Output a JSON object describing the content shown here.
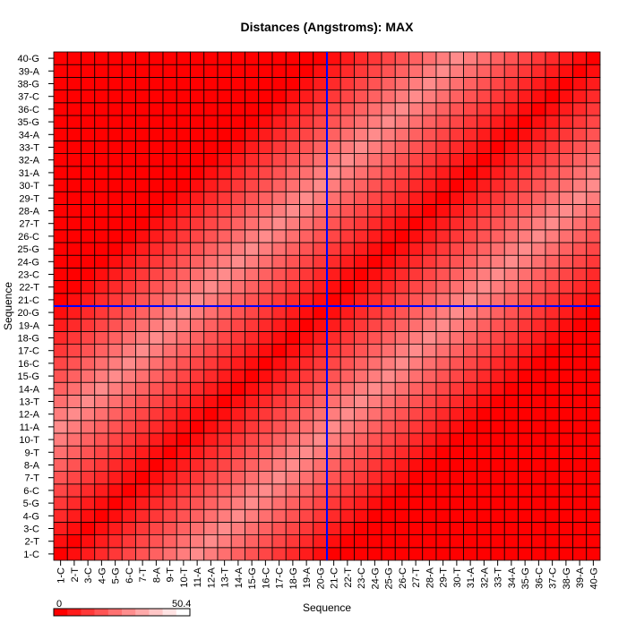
{
  "chart_data": {
    "type": "heatmap",
    "title": "Distances (Angstroms):  MAX",
    "xlabel": "Sequence",
    "ylabel": "Sequence",
    "categories": [
      "1-C",
      "2-T",
      "3-C",
      "4-G",
      "5-G",
      "6-C",
      "7-T",
      "8-A",
      "9-T",
      "10-T",
      "11-A",
      "12-A",
      "13-T",
      "14-A",
      "15-G",
      "16-C",
      "17-C",
      "18-G",
      "19-A",
      "20-G",
      "21-C",
      "22-T",
      "23-C",
      "24-G",
      "25-G",
      "26-C",
      "27-T",
      "28-A",
      "29-T",
      "30-T",
      "31-A",
      "32-A",
      "33-T",
      "34-A",
      "35-G",
      "36-C",
      "37-C",
      "38-G",
      "39-A",
      "40-G"
    ],
    "value_model": "distance(i,j) = min(2.75*|i-j|, 55 - 2.75*|i-j|, 50.4); diagonal = 0",
    "value_range": [
      0,
      50.4
    ],
    "color_scale": {
      "low": "#ff0000",
      "high": "#ffffff",
      "border": "#000000"
    },
    "legend": {
      "min_label": "0",
      "max_label": "50.4",
      "placement": "bottom-left"
    },
    "crosshair": {
      "x_after": "20-G",
      "y_after": "20-G",
      "color": "#0000ff"
    },
    "grid": true
  }
}
